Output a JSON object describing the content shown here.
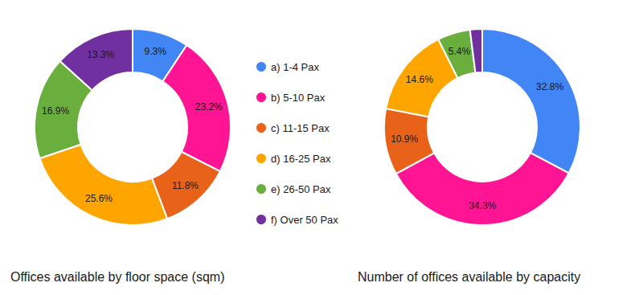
{
  "chart_data": [
    {
      "type": "pie",
      "title": "Offices available by floor space (sqm)",
      "categories": [
        "a) 1-4 Pax",
        "b) 5-10 Pax",
        "c) 11-15 Pax",
        "d) 16-25 Pax",
        "e) 26-50 Pax",
        "f) Over 50 Pax"
      ],
      "values": [
        9.3,
        23.2,
        11.8,
        25.6,
        16.9,
        13.3
      ],
      "value_labels": [
        "9.3%",
        "23.2%",
        "11.8%",
        "25.6%",
        "16.9%",
        "13.3%"
      ],
      "colors": [
        "#4285F4",
        "#FF1493",
        "#E8621A",
        "#FFA500",
        "#6AAE3E",
        "#7030A0"
      ],
      "data_labels": true,
      "legend": "right"
    },
    {
      "type": "pie",
      "title": "Number of offices available by capacity",
      "categories": [
        "a) 1-4 Pax",
        "b) 5-10 Pax",
        "c) 11-15 Pax",
        "d) 16-25 Pax",
        "e) 26-50 Pax",
        "f) Over 50 Pax"
      ],
      "values": [
        32.8,
        34.3,
        10.9,
        14.6,
        5.4,
        2.0
      ],
      "value_labels": [
        "32.8%",
        "34.3%",
        "10.9%",
        "14.6%",
        "5.4%",
        null
      ],
      "colors": [
        "#4285F4",
        "#FF1493",
        "#E8621A",
        "#FFA500",
        "#6AAE3E",
        "#7030A0"
      ],
      "data_labels": true
    }
  ]
}
